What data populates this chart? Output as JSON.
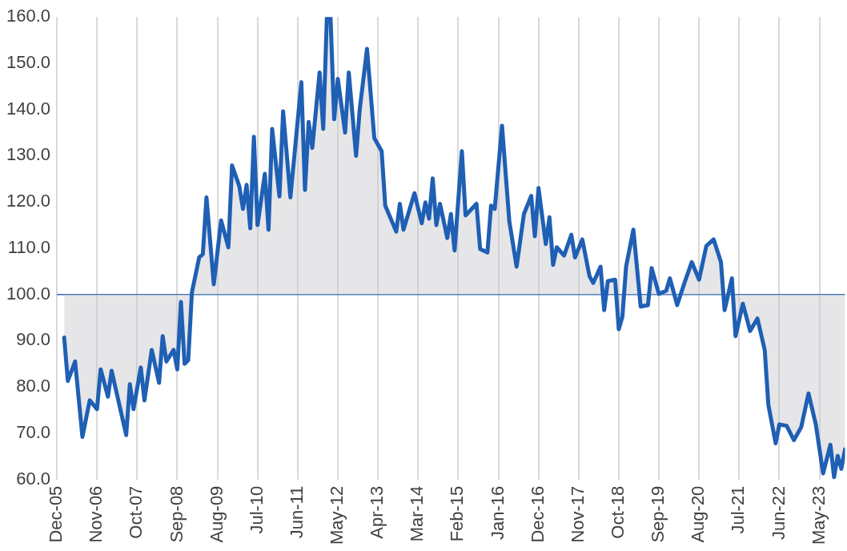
{
  "chart_data": {
    "type": "line",
    "series": [
      {
        "color": "#1f5fb4",
        "x": [
          "2006-02",
          "2006-03",
          "2006-05",
          "2006-07",
          "2006-09",
          "2006-11",
          "2006-12",
          "2007-02",
          "2007-03",
          "2007-07",
          "2007-08",
          "2007-09",
          "2007-11",
          "2007-12",
          "2008-02",
          "2008-04",
          "2008-05",
          "2008-06",
          "2008-08",
          "2008-09",
          "2008-10",
          "2008-11",
          "2008-12",
          "2009-01",
          "2009-03",
          "2009-04",
          "2009-05",
          "2009-07",
          "2009-09",
          "2009-11",
          "2009-12",
          "2010-02",
          "2010-03",
          "2010-04",
          "2010-05",
          "2010-06",
          "2010-07",
          "2010-09",
          "2010-10",
          "2010-11",
          "2011-01",
          "2011-02",
          "2011-04",
          "2011-07",
          "2011-08",
          "2011-09",
          "2011-10",
          "2011-12",
          "2012-01",
          "2012-02",
          "2012-03",
          "2012-04",
          "2012-05",
          "2012-07",
          "2012-08",
          "2012-10",
          "2012-11",
          "2013-01",
          "2013-03",
          "2013-05",
          "2013-06",
          "2013-09",
          "2013-10",
          "2013-11",
          "2014-02",
          "2014-04",
          "2014-05",
          "2014-06",
          "2014-07",
          "2014-08",
          "2014-09",
          "2014-11",
          "2014-12",
          "2015-01",
          "2015-03",
          "2015-04",
          "2015-07",
          "2015-08",
          "2015-10",
          "2015-11",
          "2015-12",
          "2016-02",
          "2016-04",
          "2016-06",
          "2016-08",
          "2016-10",
          "2016-11",
          "2016-12",
          "2017-02",
          "2017-03",
          "2017-04",
          "2017-05",
          "2017-07",
          "2017-09",
          "2017-10",
          "2017-12",
          "2018-02",
          "2018-03",
          "2018-05",
          "2018-06",
          "2018-07",
          "2018-09",
          "2018-10",
          "2018-11",
          "2018-12",
          "2019-02",
          "2019-04",
          "2019-06",
          "2019-07",
          "2019-09",
          "2019-11",
          "2019-12",
          "2020-02",
          "2020-04",
          "2020-06",
          "2020-08",
          "2020-10",
          "2020-12",
          "2021-02",
          "2021-03",
          "2021-05",
          "2021-06",
          "2021-08",
          "2021-10",
          "2021-12",
          "2022-02",
          "2022-03",
          "2022-05",
          "2022-06",
          "2022-08",
          "2022-10",
          "2022-12",
          "2023-02",
          "2023-04",
          "2023-06",
          "2023-08",
          "2023-09",
          "2023-10",
          "2023-11",
          "2023-12"
        ],
        "values": [
          90.7,
          81.3,
          85.5,
          69.2,
          77.1,
          75.2,
          83.8,
          77.9,
          83.5,
          69.6,
          80.6,
          75.2,
          84.2,
          77.1,
          88,
          80.9,
          91,
          85.5,
          88,
          83.8,
          98.4,
          85,
          85.8,
          100.4,
          108,
          108.7,
          121,
          102.2,
          116,
          110.2,
          127.9,
          123.4,
          118.5,
          123.7,
          114.3,
          134.1,
          115,
          126.1,
          114,
          135.8,
          121.2,
          139.6,
          121,
          145.9,
          122.6,
          137.3,
          131.7,
          148,
          135.8,
          160,
          160,
          137.9,
          146.6,
          135,
          148,
          130,
          140,
          153.1,
          133.8,
          131,
          119.2,
          113.6,
          119.6,
          114,
          121.9,
          115.4,
          119.9,
          116.4,
          125.1,
          115,
          119.6,
          112.2,
          117.4,
          109.5,
          131,
          117.1,
          119.6,
          109.8,
          109.1,
          119.2,
          118.5,
          136.5,
          115.8,
          106,
          117.4,
          121.3,
          112.6,
          123,
          110.9,
          116.7,
          106.4,
          110.2,
          108.4,
          112.9,
          108,
          111.9,
          103.9,
          102.5,
          106,
          96.6,
          102.9,
          103.2,
          92.5,
          95.2,
          106,
          114,
          97.4,
          97.7,
          105.7,
          100.1,
          100.8,
          103.5,
          97.7,
          102.5,
          107,
          103.2,
          110.5,
          111.9,
          107,
          96.6,
          103.5,
          91,
          98,
          92.1,
          94.8,
          88,
          76.1,
          67.8,
          71.9,
          71.6,
          68.5,
          71.3,
          78.6,
          71.9,
          61.3,
          67.5,
          60.5,
          65.1,
          62.3,
          66.5
        ]
      }
    ],
    "xlim": [
      "2005-12",
      "2023-12"
    ],
    "xticks": [
      {
        "value": "2005-12",
        "label": "Dec-05"
      },
      {
        "value": "2006-11",
        "label": "Nov-06"
      },
      {
        "value": "2007-10",
        "label": "Oct-07"
      },
      {
        "value": "2008-09",
        "label": "Sep-08"
      },
      {
        "value": "2009-08",
        "label": "Aug-09"
      },
      {
        "value": "2010-07",
        "label": "Jul-10"
      },
      {
        "value": "2011-06",
        "label": "Jun-11"
      },
      {
        "value": "2012-05",
        "label": "May-12"
      },
      {
        "value": "2013-04",
        "label": "Apr-13"
      },
      {
        "value": "2014-03",
        "label": "Mar-14"
      },
      {
        "value": "2015-02",
        "label": "Feb-15"
      },
      {
        "value": "2016-01",
        "label": "Jan-16"
      },
      {
        "value": "2016-12",
        "label": "Dec-16"
      },
      {
        "value": "2017-11",
        "label": "Nov-17"
      },
      {
        "value": "2018-10",
        "label": "Oct-18"
      },
      {
        "value": "2019-09",
        "label": "Sep-19"
      },
      {
        "value": "2020-08",
        "label": "Aug-20"
      },
      {
        "value": "2021-07",
        "label": "Jul-21"
      },
      {
        "value": "2022-06",
        "label": "Jun-22"
      },
      {
        "value": "2023-05",
        "label": "May-23"
      }
    ],
    "ylim": [
      60,
      160
    ],
    "yticks": [
      {
        "value": 60,
        "label": "60.0"
      },
      {
        "value": 70,
        "label": "70.0"
      },
      {
        "value": 80,
        "label": "80.0"
      },
      {
        "value": 90,
        "label": "90.0"
      },
      {
        "value": 100,
        "label": "100.0"
      },
      {
        "value": 110,
        "label": "110.0"
      },
      {
        "value": 120,
        "label": "120.0"
      },
      {
        "value": 130,
        "label": "130.0"
      },
      {
        "value": 140,
        "label": "140.0"
      },
      {
        "value": 150,
        "label": "150.0"
      },
      {
        "value": 160,
        "label": "160.0"
      }
    ],
    "ref_lines": [
      {
        "axis": "y",
        "value": 100,
        "color": "#2e6bb5"
      }
    ],
    "grid": "x",
    "legend": false,
    "marker": "none",
    "line_style": "solid"
  }
}
